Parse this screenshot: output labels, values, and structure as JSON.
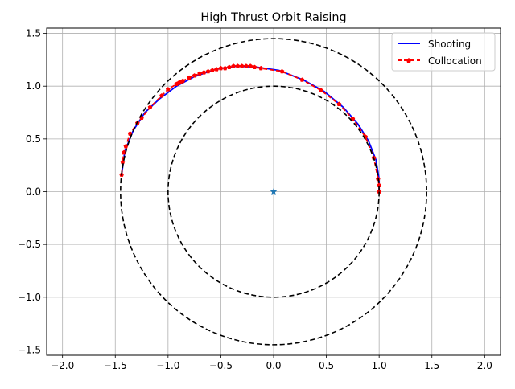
{
  "chart_data": {
    "type": "line",
    "title": "High Thrust Orbit Raising",
    "xlabel": "",
    "ylabel": "",
    "xlim": [
      -2.15,
      2.15
    ],
    "ylim": [
      -1.55,
      1.55
    ],
    "x_ticks": [
      -2.0,
      -1.5,
      -1.0,
      -0.5,
      0.0,
      0.5,
      1.0,
      1.5,
      2.0
    ],
    "y_ticks": [
      -1.5,
      -1.0,
      -0.5,
      0.0,
      0.5,
      1.0,
      1.5
    ],
    "x_tick_labels": [
      "−2.0",
      "−1.5",
      "−1.0",
      "−0.5",
      "0.0",
      "0.5",
      "1.0",
      "1.5",
      "2.0"
    ],
    "y_tick_labels": [
      "−1.5",
      "−1.0",
      "−0.5",
      "0.0",
      "0.5",
      "1.0",
      "1.5"
    ],
    "grid": true,
    "legend": "top-right",
    "series": [
      {
        "name": "Shooting",
        "color": "#0000ff",
        "style": "solid",
        "points": [
          [
            1.0,
            0.0
          ],
          [
            1.0,
            0.12
          ],
          [
            0.97,
            0.3
          ],
          [
            0.9,
            0.48
          ],
          [
            0.8,
            0.64
          ],
          [
            0.66,
            0.8
          ],
          [
            0.48,
            0.95
          ],
          [
            0.28,
            1.06
          ],
          [
            0.05,
            1.15
          ],
          [
            -0.15,
            1.18
          ],
          [
            -0.35,
            1.19
          ],
          [
            -0.55,
            1.16
          ],
          [
            -0.75,
            1.09
          ],
          [
            -0.92,
            1.0
          ],
          [
            -1.08,
            0.88
          ],
          [
            -1.22,
            0.75
          ],
          [
            -1.33,
            0.58
          ],
          [
            -1.41,
            0.38
          ],
          [
            -1.44,
            0.16
          ]
        ]
      },
      {
        "name": "Collocation",
        "color": "#ff0000",
        "style": "dashed",
        "marker": "pentagon",
        "points": [
          [
            1.0,
            0.0
          ],
          [
            1.0,
            0.06
          ],
          [
            0.99,
            0.12
          ],
          [
            0.95,
            0.32
          ],
          [
            0.87,
            0.52
          ],
          [
            0.75,
            0.69
          ],
          [
            0.62,
            0.83
          ],
          [
            0.45,
            0.96
          ],
          [
            0.27,
            1.06
          ],
          [
            0.08,
            1.14
          ],
          [
            -0.12,
            1.17
          ],
          [
            -0.18,
            1.18
          ],
          [
            -0.22,
            1.19
          ],
          [
            -0.26,
            1.19
          ],
          [
            -0.3,
            1.19
          ],
          [
            -0.34,
            1.19
          ],
          [
            -0.38,
            1.19
          ],
          [
            -0.42,
            1.18
          ],
          [
            -0.46,
            1.17
          ],
          [
            -0.5,
            1.17
          ],
          [
            -0.54,
            1.16
          ],
          [
            -0.58,
            1.15
          ],
          [
            -0.62,
            1.14
          ],
          [
            -0.66,
            1.13
          ],
          [
            -0.7,
            1.12
          ],
          [
            -0.75,
            1.1
          ],
          [
            -0.8,
            1.08
          ],
          [
            -0.86,
            1.05
          ],
          [
            -0.88,
            1.04
          ],
          [
            -0.9,
            1.03
          ],
          [
            -0.92,
            1.02
          ],
          [
            -1.0,
            0.97
          ],
          [
            -1.06,
            0.91
          ],
          [
            -1.17,
            0.8
          ],
          [
            -1.25,
            0.7
          ],
          [
            -1.29,
            0.65
          ],
          [
            -1.36,
            0.55
          ],
          [
            -1.4,
            0.43
          ],
          [
            -1.42,
            0.37
          ],
          [
            -1.43,
            0.28
          ],
          [
            -1.44,
            0.16
          ]
        ]
      },
      {
        "name": "",
        "color": "#000000",
        "style": "dashed",
        "type": "circle",
        "radius": 1.0
      },
      {
        "name": "",
        "color": "#000000",
        "style": "dashed",
        "type": "circle",
        "radius": 1.45
      },
      {
        "name": "",
        "color": "#1f77b4",
        "type": "marker",
        "marker": "star",
        "points": [
          [
            0.0,
            0.0
          ]
        ]
      }
    ]
  }
}
